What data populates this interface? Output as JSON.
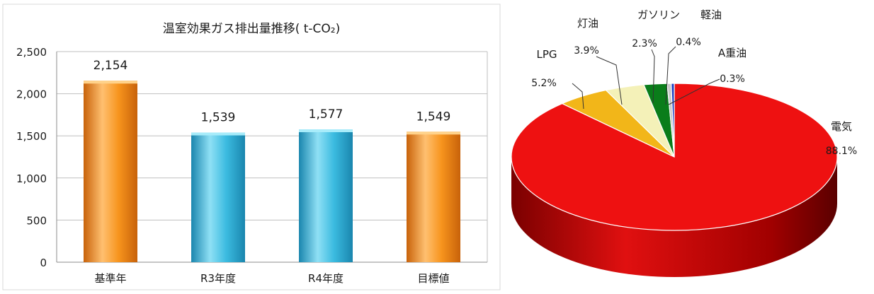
{
  "chart_data": [
    {
      "type": "bar",
      "title": "温室効果ガス排出量推移( t-CO₂)",
      "categories": [
        "基準年",
        "R3年度",
        "R4年度",
        "目標値"
      ],
      "values": [
        2154,
        1539,
        1577,
        1549
      ],
      "value_labels": [
        "2,154",
        "1,539",
        "1,577",
        "1,549"
      ],
      "ylim": [
        0,
        2500
      ],
      "yticks": [
        0,
        500,
        1000,
        1500,
        2000,
        2500
      ],
      "ytick_labels": [
        "0",
        "500",
        "1,000",
        "1,500",
        "2,000",
        "2,500"
      ],
      "grid": true,
      "legend": "none",
      "colors": {
        "orange": "#f7941d",
        "blue": "#3bbbe0",
        "target_label": "#ff0000"
      }
    },
    {
      "type": "pie",
      "labels": [
        "電気",
        "LPG",
        "灯油",
        "ガソリン",
        "軽油",
        "A重油"
      ],
      "values": [
        88.1,
        5.2,
        3.9,
        2.3,
        0.4,
        0.3
      ],
      "value_labels": [
        "88.1%",
        "5.2%",
        "3.9%",
        "2.3%",
        "0.4%",
        "0.3%"
      ],
      "colors": [
        "#ee1111",
        "#f2b619",
        "#f4f1b8",
        "#0a7d1a",
        "#c8c8c8",
        "#1a3ec0"
      ],
      "legend": "none"
    }
  ]
}
